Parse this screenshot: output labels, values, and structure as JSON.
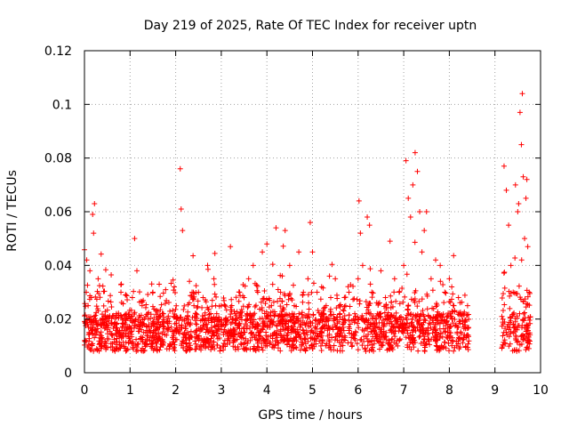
{
  "chart_data": {
    "type": "scatter",
    "title": "Day 219 of 2025, Rate Of TEC Index for receiver uptn",
    "xlabel": "GPS time / hours",
    "ylabel": "ROTI / TECUs",
    "xlim": [
      0,
      10
    ],
    "ylim": [
      0,
      0.12
    ],
    "x_ticks": [
      0,
      1,
      2,
      3,
      4,
      5,
      6,
      7,
      8,
      9,
      10
    ],
    "y_ticks": [
      0,
      0.02,
      0.04,
      0.06,
      0.08,
      0.1,
      0.12
    ],
    "x_tick_labels": [
      "0",
      "1",
      "2",
      "3",
      "4",
      "5",
      "6",
      "7",
      "8",
      "9",
      "10"
    ],
    "y_tick_labels": [
      "0",
      "0.02",
      "0.04",
      "0.06",
      "0.08",
      "0.1",
      "0.12"
    ],
    "grid": true,
    "marker": "+",
    "marker_color": "#ff0000",
    "data_gap_hours": [
      8.43,
      9.15
    ],
    "series": [
      {
        "name": "ROTI",
        "x": [
          0.02,
          0.04,
          0.05,
          0.07,
          0.08,
          0.1,
          0.12,
          0.14,
          0.15,
          0.18,
          0.2,
          0.22,
          0.25,
          0.3,
          0.35,
          0.4,
          0.5,
          0.6,
          0.7,
          0.8,
          0.9,
          1.0,
          1.05,
          1.1,
          1.15,
          1.2,
          1.3,
          1.4,
          1.5,
          1.6,
          1.7,
          1.8,
          1.9,
          2.0,
          2.1,
          2.12,
          2.15,
          2.2,
          2.3,
          2.4,
          2.5,
          2.6,
          2.7,
          2.8,
          2.9,
          3.0,
          3.1,
          3.2,
          3.3,
          3.4,
          3.5,
          3.6,
          3.7,
          3.8,
          3.9,
          4.0,
          4.1,
          4.2,
          4.3,
          4.4,
          4.5,
          4.6,
          4.7,
          4.8,
          4.9,
          4.95,
          5.0,
          5.1,
          5.2,
          5.3,
          5.4,
          5.5,
          5.6,
          5.7,
          5.8,
          5.9,
          6.0,
          6.02,
          6.05,
          6.1,
          6.2,
          6.25,
          6.3,
          6.4,
          6.5,
          6.6,
          6.7,
          6.8,
          6.9,
          7.0,
          7.05,
          7.1,
          7.15,
          7.2,
          7.25,
          7.3,
          7.35,
          7.4,
          7.45,
          7.5,
          7.6,
          7.7,
          7.8,
          7.9,
          8.0,
          8.1,
          8.2,
          8.3,
          8.4,
          9.2,
          9.25,
          9.3,
          9.35,
          9.4,
          9.45,
          9.5,
          9.52,
          9.55,
          9.58,
          9.6,
          9.62,
          9.65,
          9.68,
          9.7,
          9.72,
          9.75
        ],
        "y": [
          0.012,
          0.03,
          0.042,
          0.018,
          0.025,
          0.015,
          0.038,
          0.02,
          0.028,
          0.059,
          0.052,
          0.063,
          0.014,
          0.035,
          0.018,
          0.02,
          0.016,
          0.014,
          0.022,
          0.03,
          0.018,
          0.02,
          0.028,
          0.05,
          0.038,
          0.017,
          0.015,
          0.02,
          0.03,
          0.016,
          0.018,
          0.014,
          0.017,
          0.016,
          0.076,
          0.061,
          0.053,
          0.02,
          0.018,
          0.025,
          0.03,
          0.028,
          0.04,
          0.02,
          0.022,
          0.025,
          0.018,
          0.047,
          0.022,
          0.03,
          0.028,
          0.035,
          0.04,
          0.03,
          0.045,
          0.048,
          0.025,
          0.054,
          0.03,
          0.053,
          0.04,
          0.025,
          0.045,
          0.03,
          0.035,
          0.056,
          0.045,
          0.03,
          0.032,
          0.025,
          0.028,
          0.035,
          0.022,
          0.028,
          0.03,
          0.02,
          0.035,
          0.064,
          0.052,
          0.04,
          0.058,
          0.055,
          0.03,
          0.02,
          0.038,
          0.028,
          0.049,
          0.035,
          0.03,
          0.04,
          0.079,
          0.065,
          0.058,
          0.07,
          0.082,
          0.075,
          0.06,
          0.045,
          0.053,
          0.06,
          0.035,
          0.042,
          0.04,
          0.03,
          0.035,
          0.025,
          0.028,
          0.022,
          0.025,
          0.077,
          0.068,
          0.055,
          0.04,
          0.03,
          0.07,
          0.06,
          0.063,
          0.097,
          0.085,
          0.104,
          0.073,
          0.05,
          0.065,
          0.072,
          0.047,
          0.03
        ]
      }
    ]
  }
}
